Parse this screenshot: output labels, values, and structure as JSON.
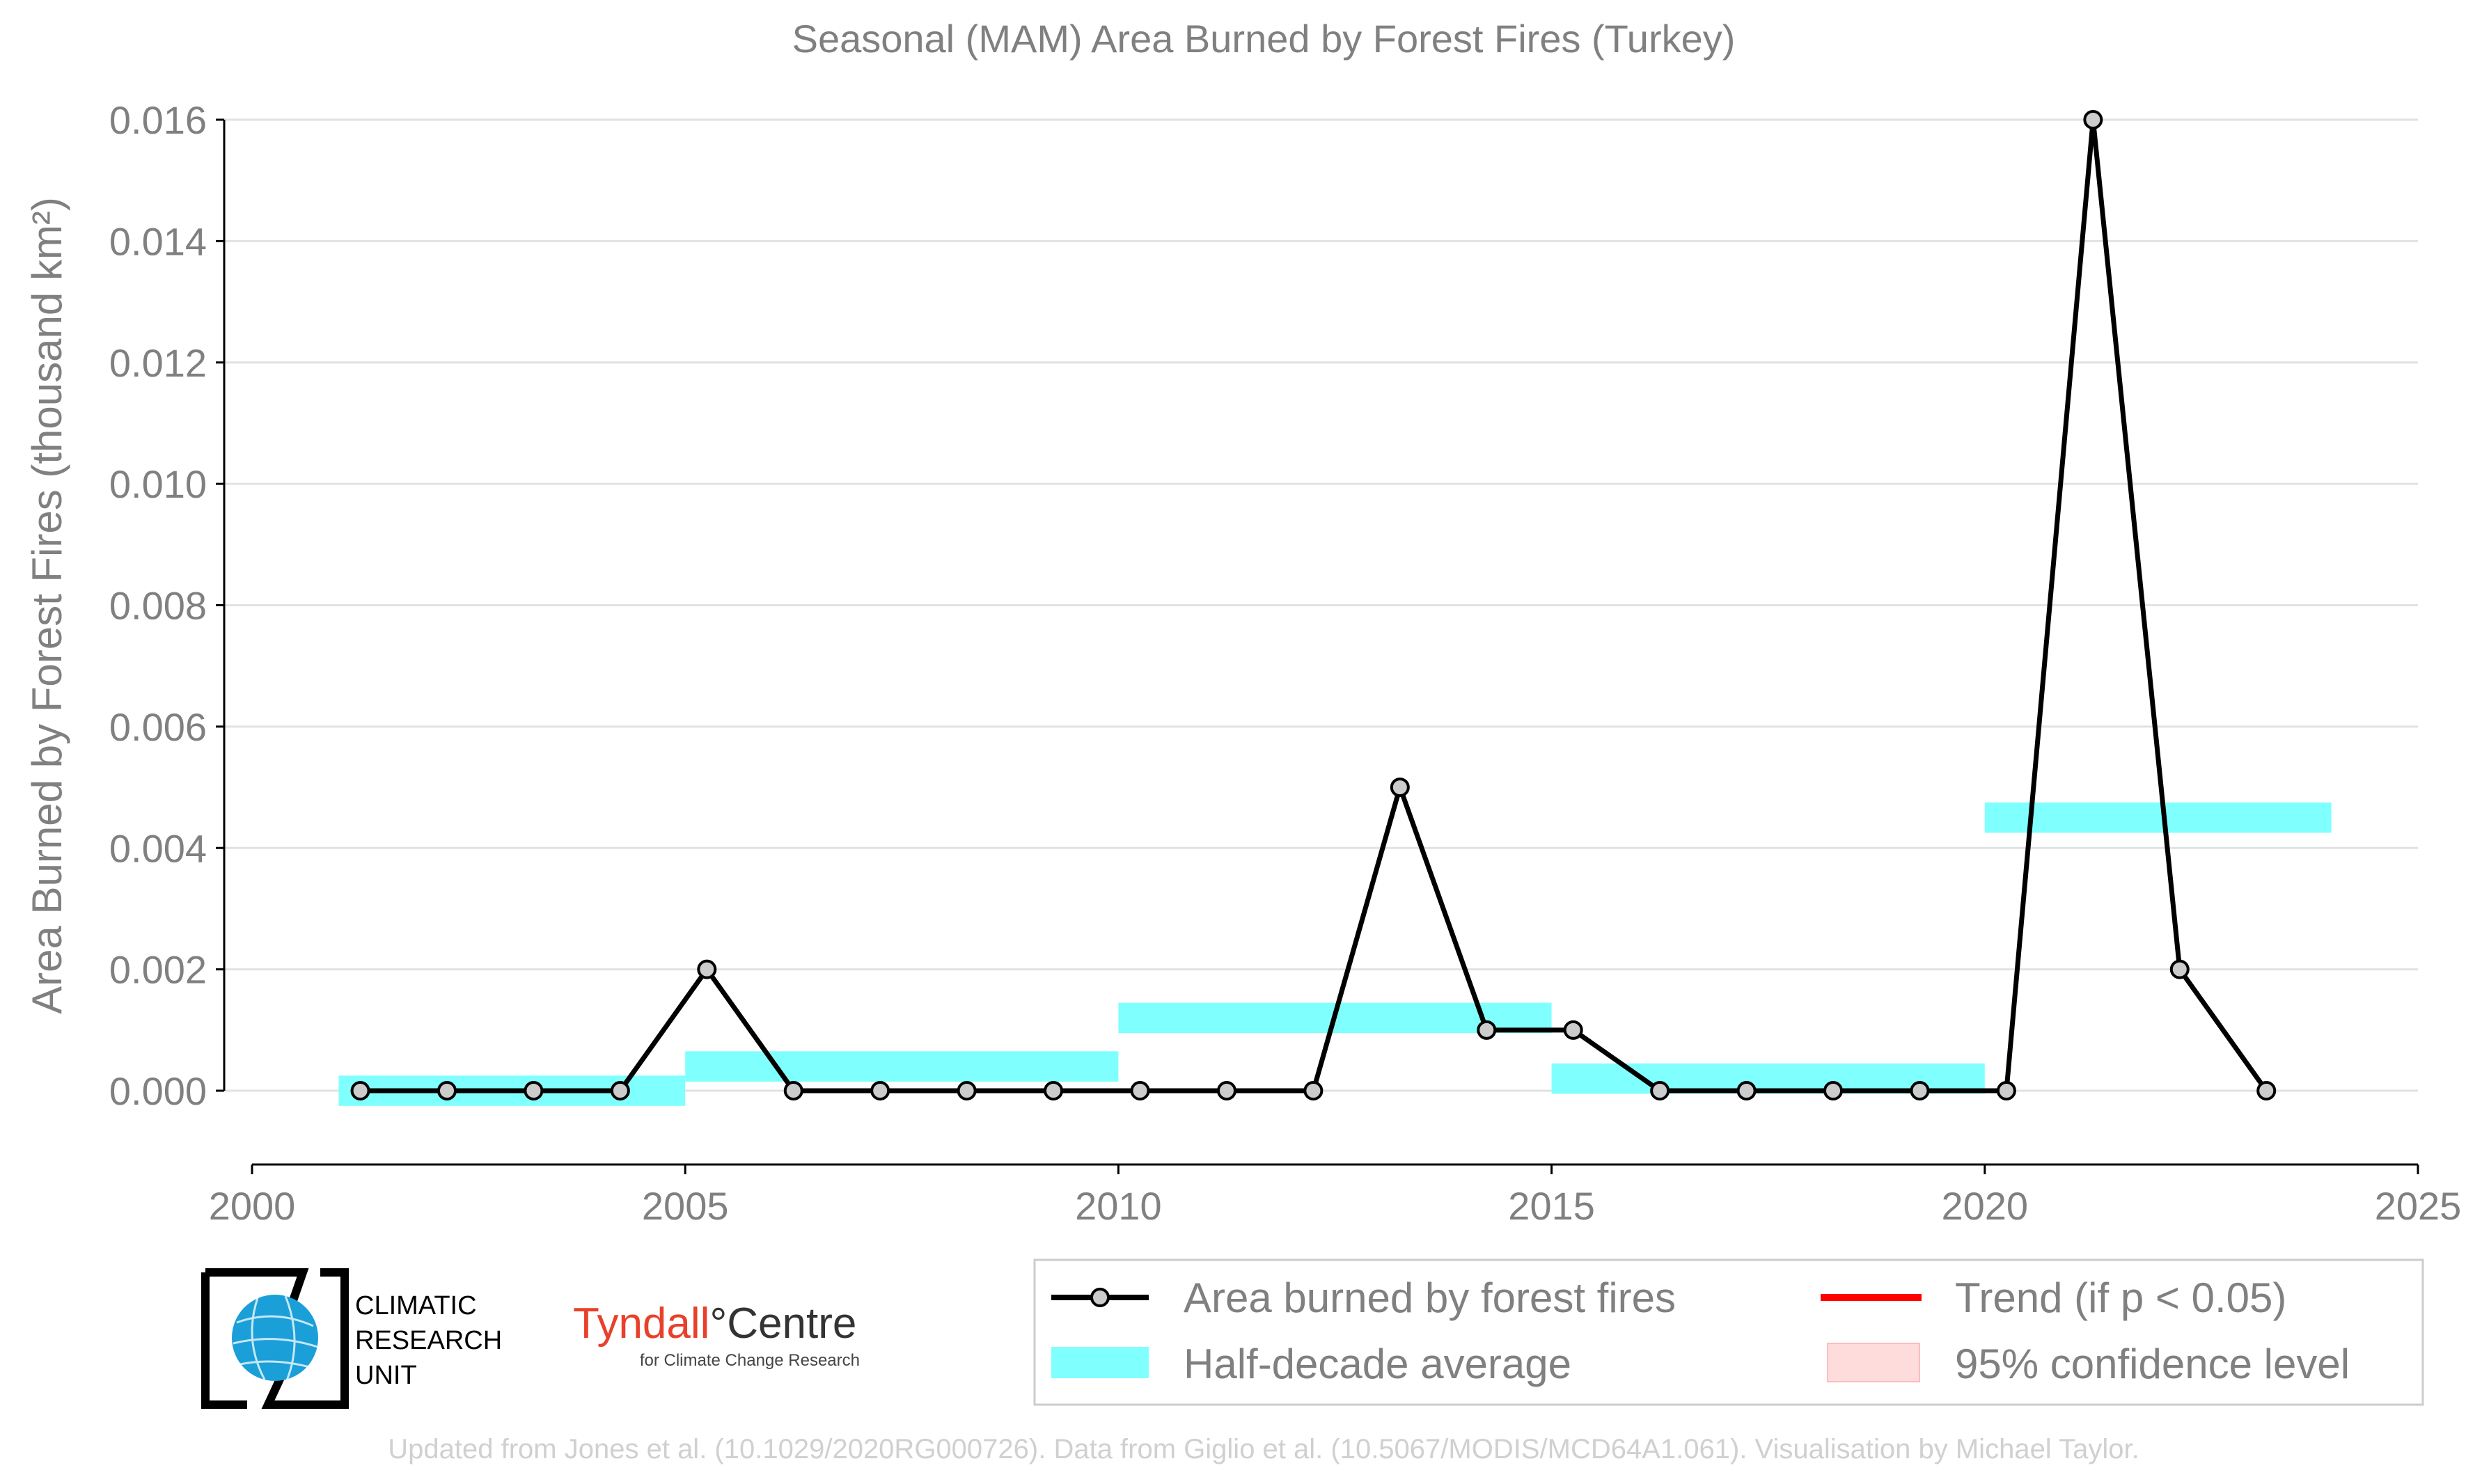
{
  "chart_data": {
    "type": "line",
    "title": "Seasonal (MAM) Area Burned by Forest Fires (Turkey)",
    "ylabel": "Area Burned by Forest Fires (thousand km²)",
    "xlabel": "",
    "xlim": [
      2000,
      2025
    ],
    "ylim": [
      -0.0012,
      0.0163
    ],
    "x_ticks": [
      "2000",
      "2005",
      "2010",
      "2015",
      "2020",
      "2025"
    ],
    "x_tick_values": [
      2000,
      2005,
      2010,
      2015,
      2020,
      2025
    ],
    "y_ticks": [
      "0.000",
      "0.002",
      "0.004",
      "0.006",
      "0.008",
      "0.010",
      "0.012",
      "0.014",
      "0.016"
    ],
    "y_tick_values": [
      0,
      0.002,
      0.004,
      0.006,
      0.008,
      0.01,
      0.012,
      0.014,
      0.016
    ],
    "grid": true,
    "series": [
      {
        "name": "Area burned by forest fires",
        "color": "#000000",
        "marker_fill": "#cccccc",
        "x": [
          2001.25,
          2002.25,
          2003.25,
          2004.25,
          2005.25,
          2006.25,
          2007.25,
          2008.25,
          2009.25,
          2010.25,
          2011.25,
          2012.25,
          2013.25,
          2014.25,
          2015.25,
          2016.25,
          2017.25,
          2018.25,
          2019.25,
          2020.25,
          2021.25,
          2022.25,
          2023.25
        ],
        "values": [
          0,
          0,
          0,
          0,
          0.002,
          0,
          0,
          0,
          0,
          0,
          0,
          0,
          0.005,
          0.001,
          0.001,
          0,
          0,
          0,
          0,
          0,
          0.016,
          0.002,
          0
        ]
      }
    ],
    "half_decade_average": {
      "name": "Half-decade average",
      "color": "#80ffff",
      "segments": [
        {
          "x0": 2001,
          "x1": 2005,
          "value": 0
        },
        {
          "x0": 2005,
          "x1": 2010,
          "value": 0.0004
        },
        {
          "x0": 2010,
          "x1": 2015,
          "value": 0.0012
        },
        {
          "x0": 2015,
          "x1": 2020,
          "value": 0.0002
        },
        {
          "x0": 2020,
          "x1": 2024,
          "value": 0.0045
        }
      ]
    },
    "legend": {
      "placement": "bottom-right",
      "entries": [
        {
          "label": "Area burned by forest fires",
          "color": "#000000",
          "kind": "line-marker"
        },
        {
          "label": "Trend (if p < 0.05)",
          "color": "#ff0000",
          "kind": "line"
        },
        {
          "label": "Half-decade average",
          "color": "#80ffff",
          "kind": "band"
        },
        {
          "label": "95% confidence level",
          "color": "#ffdcdc",
          "kind": "patch"
        }
      ]
    }
  },
  "footer": "Updated from Jones et al. (10.1029/2020RG000726). Data from Giglio et al. (10.5067/MODIS/MCD64A1.061). Visualisation by Michael Taylor.",
  "logos": {
    "cru": {
      "line1": "CLIMATIC",
      "line2": "RESEARCH",
      "line3": "UNIT"
    },
    "tyndall": {
      "name_part1": "Tyndall",
      "degree": "°",
      "name_part2": "Centre",
      "tagline": "for Climate Change Research",
      "color": "#e8402a"
    }
  }
}
